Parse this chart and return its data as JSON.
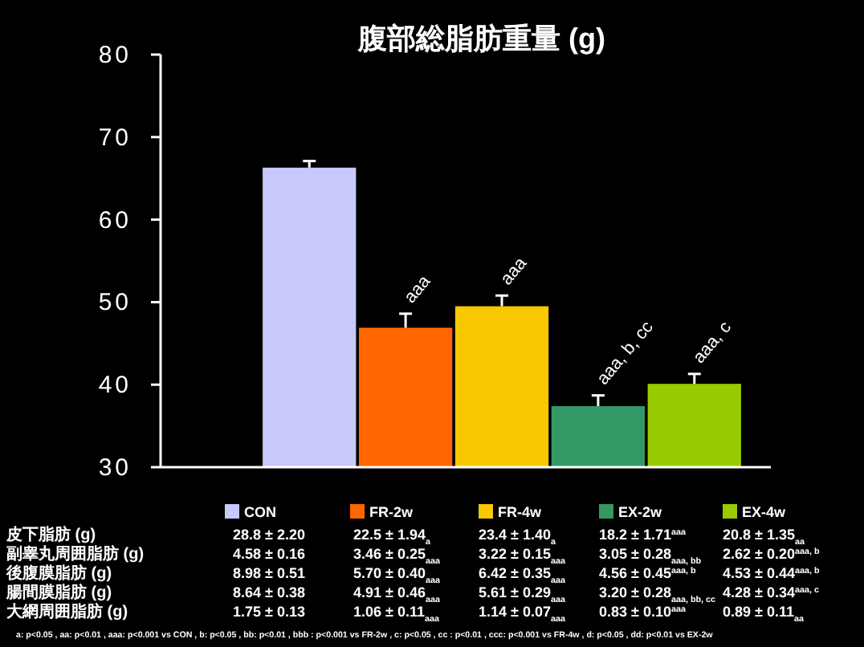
{
  "chart_data": {
    "type": "bar",
    "title": "腹部総脂肪重量 (g)",
    "categories": [
      null
    ],
    "series": [
      {
        "name": "CON",
        "color": "#c8c8fa",
        "values": [
          66.3
        ],
        "errors": [
          0.8
        ]
      },
      {
        "name": "FR-2w",
        "color": "#ff6600",
        "values": [
          46.9
        ],
        "errors": [
          1.7
        ]
      },
      {
        "name": "FR-4w",
        "color": "#f8c800",
        "values": [
          49.5
        ],
        "errors": [
          1.3
        ]
      },
      {
        "name": "EX-2w",
        "color": "#339966",
        "values": [
          37.4
        ],
        "errors": [
          1.3
        ]
      },
      {
        "name": "EX-4w",
        "color": "#99cc00",
        "values": [
          40.1
        ],
        "errors": [
          1.2
        ]
      }
    ],
    "ylim": [
      30,
      80
    ],
    "yticks": [
      30,
      40,
      50,
      60,
      70,
      80
    ],
    "tick_labels": "y",
    "legend": "bottom",
    "grid": false,
    "annotations": [
      "aaa",
      "aaa",
      "aaa, b, cc",
      "aaa, c",
      "皮下脂肪 (g)",
      "28.8 ± 2.20",
      "22.5 ± 1.94$_{a}$",
      "23.4 ± 1.40$_{a}$",
      "18.2 ± 1.71$^{aaa}$",
      "20.8 ± 1.35$_{aa}$",
      "副睾丸周囲脂肪 (g)",
      "4.58 ± 0.16",
      "3.46 ± 0.25$_{aaa}$",
      "3.22 ± 0.15$_{aaa}$",
      "3.05 ± 0.28$_{aaa, bb}$",
      "2.62 ± 0.20$^{aaa, b}$",
      "後腹膜脂肪 (g)",
      "8.98 ± 0.51",
      "5.70 ± 0.40$_{aaa}$",
      "6.42 ± 0.35$_{aaa}$",
      "4.56 ± 0.45$^{aaa, b}$",
      "4.53 ± 0.44$^{aaa, b}$",
      "腸間膜脂肪 (g)",
      "8.64 ± 0.38",
      "4.91 ± 0.46$_{aaa}$",
      "5.61 ± 0.29$_{aaa}$",
      "3.20 ± 0.28$_{aaa, bb, cc}$",
      "4.28 ± 0.34$^{aaa, c}$",
      "大網周囲脂肪 (g)",
      "1.75 ± 0.13",
      "1.06 ± 0.11$_{aaa}$",
      "1.14 ± 0.07$_{aaa}$",
      "0.83 ± 0.10$^{aaa}$",
      "0.89 ± 0.11$_{aa}$",
      "a: p<0.05 , aa: p<0.01 , aaa: p<0.001 vs CON , b: p<0.05 , bb: p<0.01 , bbb : p<0.001 vs FR-2w , c: p<0.05 , cc : p<0.01 , ccc: p<0.001 vs FR-4w , d: p<0.05 , dd: p<0.01 vs EX-2w"
    ]
  }
}
